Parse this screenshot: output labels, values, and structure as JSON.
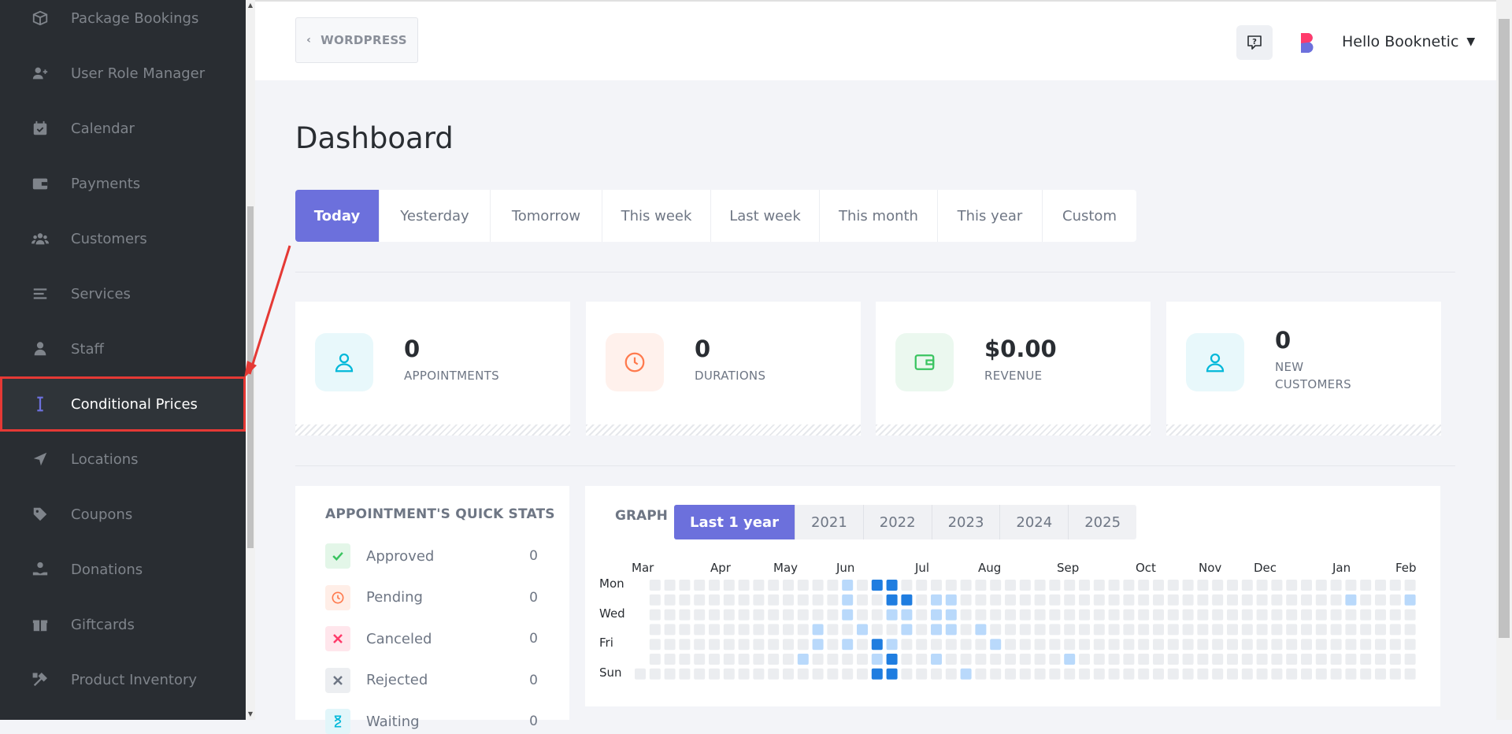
{
  "sidebar": {
    "items": [
      {
        "label": "Package Bookings",
        "icon": "package-icon"
      },
      {
        "label": "User Role Manager",
        "icon": "user-plus-icon"
      },
      {
        "label": "Calendar",
        "icon": "calendar-icon"
      },
      {
        "label": "Payments",
        "icon": "wallet-icon"
      },
      {
        "label": "Customers",
        "icon": "users-icon"
      },
      {
        "label": "Services",
        "icon": "list-icon"
      },
      {
        "label": "Staff",
        "icon": "user-icon"
      },
      {
        "label": "Conditional Prices",
        "icon": "text-cursor-icon"
      },
      {
        "label": "Locations",
        "icon": "location-arrow-icon"
      },
      {
        "label": "Coupons",
        "icon": "tag-icon"
      },
      {
        "label": "Donations",
        "icon": "donation-icon"
      },
      {
        "label": "Giftcards",
        "icon": "gift-icon"
      },
      {
        "label": "Product Inventory",
        "icon": "tools-icon"
      }
    ],
    "active_index": 7
  },
  "topbar": {
    "back_label": "WORDPRESS",
    "user_greeting": "Hello Booknetic"
  },
  "page": {
    "title": "Dashboard",
    "filters": [
      "Today",
      "Yesterday",
      "Tomorrow",
      "This week",
      "Last week",
      "This month",
      "This year",
      "Custom"
    ],
    "active_filter": "Today"
  },
  "stats": [
    {
      "value": "0",
      "label": "APPOINTMENTS",
      "icon": "user-icon",
      "color": "#00b8d9"
    },
    {
      "value": "0",
      "label": "DURATIONS",
      "icon": "clock-icon",
      "color": "#ff7a4d"
    },
    {
      "value": "$0.00",
      "label": "REVENUE",
      "icon": "wallet-icon",
      "color": "#3ac460"
    },
    {
      "value": "0",
      "label": "NEW CUSTOMERS",
      "icon": "user-icon",
      "color": "#00b8d9"
    }
  ],
  "quick_stats": {
    "title": "APPOINTMENT'S QUICK STATS",
    "rows": [
      {
        "name": "Approved",
        "value": "0",
        "icon": "check-icon",
        "color": "#3ac460"
      },
      {
        "name": "Pending",
        "value": "0",
        "icon": "clock-icon",
        "color": "#ff7a4d"
      },
      {
        "name": "Canceled",
        "value": "0",
        "icon": "x-icon",
        "color": "#ff3b6b"
      },
      {
        "name": "Rejected",
        "value": "0",
        "icon": "x-icon",
        "color": "#6e7684"
      },
      {
        "name": "Waiting",
        "value": "0",
        "icon": "hourglass-icon",
        "color": "#00b8d9"
      }
    ]
  },
  "graph": {
    "label": "GRAPH",
    "years": [
      "Last 1 year",
      "2021",
      "2022",
      "2023",
      "2024",
      "2025"
    ],
    "active_year": "Last 1 year",
    "months": [
      "Mar",
      "Apr",
      "May",
      "Jun",
      "Jul",
      "Aug",
      "Sep",
      "Oct",
      "Nov",
      "Dec",
      "Jan",
      "Feb"
    ],
    "days": [
      "Mon",
      "Wed",
      "Fri",
      "Sun"
    ]
  },
  "colors": {
    "accent": "#6c70dc",
    "highlight": "#e53935",
    "sidebar_bg": "#292d32"
  }
}
